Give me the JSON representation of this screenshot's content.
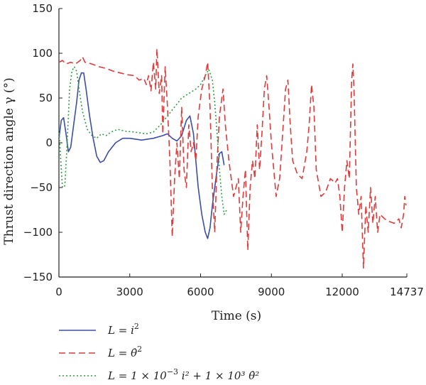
{
  "chart_data": {
    "type": "line",
    "xlabel": "Time (s)",
    "ylabel": "Thrust direction angle γ (°)",
    "xlim": [
      0,
      14737
    ],
    "ylim": [
      -150,
      150
    ],
    "x_ticks": [
      0,
      3000,
      6000,
      9000,
      12000,
      14737
    ],
    "x_tick_labels": [
      "0",
      "3000",
      "6000",
      "9000",
      "12000",
      "14737"
    ],
    "y_ticks": [
      150,
      100,
      50,
      0,
      -50,
      -100,
      -150
    ],
    "y_tick_labels": [
      "150",
      "100",
      "50",
      "0",
      "−50",
      "−100",
      "−150"
    ],
    "legend_position": "bottom-left, below plot",
    "grid": false,
    "series": [
      {
        "name": "L = i²",
        "legend_main": "L = i",
        "legend_sup": "2",
        "color": "#3b4ea8",
        "dash": "solid",
        "points": [
          [
            0,
            5
          ],
          [
            100,
            25
          ],
          [
            200,
            28
          ],
          [
            300,
            10
          ],
          [
            400,
            -10
          ],
          [
            500,
            -5
          ],
          [
            600,
            15
          ],
          [
            750,
            45
          ],
          [
            850,
            70
          ],
          [
            950,
            78
          ],
          [
            1050,
            78
          ],
          [
            1150,
            60
          ],
          [
            1300,
            30
          ],
          [
            1450,
            5
          ],
          [
            1600,
            -15
          ],
          [
            1750,
            -22
          ],
          [
            1900,
            -20
          ],
          [
            2100,
            -10
          ],
          [
            2400,
            0
          ],
          [
            2700,
            5
          ],
          [
            3000,
            5
          ],
          [
            3500,
            3
          ],
          [
            4000,
            5
          ],
          [
            4400,
            8
          ],
          [
            4600,
            10
          ],
          [
            4800,
            5
          ],
          [
            5000,
            2
          ],
          [
            5200,
            8
          ],
          [
            5400,
            25
          ],
          [
            5550,
            30
          ],
          [
            5700,
            10
          ],
          [
            5800,
            -20
          ],
          [
            5900,
            -50
          ],
          [
            6050,
            -80
          ],
          [
            6200,
            -100
          ],
          [
            6300,
            -107
          ],
          [
            6400,
            -95
          ],
          [
            6500,
            -70
          ],
          [
            6650,
            -40
          ],
          [
            6800,
            -12
          ],
          [
            6900,
            -10
          ],
          [
            7000,
            -25
          ]
        ]
      },
      {
        "name": "L = θ̇²",
        "legend_main": "L = θ̇",
        "legend_sup": "2",
        "color": "#e03a3a",
        "dash": "9,5",
        "points": [
          [
            0,
            90
          ],
          [
            150,
            92
          ],
          [
            300,
            88
          ],
          [
            500,
            90
          ],
          [
            700,
            88
          ],
          [
            900,
            92
          ],
          [
            1000,
            96
          ],
          [
            1100,
            90
          ],
          [
            1400,
            88
          ],
          [
            1700,
            85
          ],
          [
            2000,
            83
          ],
          [
            2300,
            80
          ],
          [
            2600,
            78
          ],
          [
            2900,
            76
          ],
          [
            3200,
            75
          ],
          [
            3400,
            70
          ],
          [
            3600,
            72
          ],
          [
            3700,
            65
          ],
          [
            3800,
            75
          ],
          [
            3900,
            58
          ],
          [
            4000,
            90
          ],
          [
            4100,
            60
          ],
          [
            4150,
            105
          ],
          [
            4250,
            55
          ],
          [
            4350,
            75
          ],
          [
            4400,
            10
          ],
          [
            4500,
            85
          ],
          [
            4600,
            40
          ],
          [
            4700,
            -20
          ],
          [
            4800,
            -105
          ],
          [
            4900,
            -40
          ],
          [
            5000,
            0
          ],
          [
            5100,
            -40
          ],
          [
            5200,
            40
          ],
          [
            5300,
            -30
          ],
          [
            5400,
            -50
          ],
          [
            5500,
            20
          ],
          [
            5600,
            -10
          ],
          [
            5700,
            0
          ],
          [
            5800,
            -20
          ],
          [
            5900,
            30
          ],
          [
            6050,
            60
          ],
          [
            6200,
            75
          ],
          [
            6300,
            90
          ],
          [
            6400,
            40
          ],
          [
            6500,
            -50
          ],
          [
            6600,
            -100
          ],
          [
            6700,
            -20
          ],
          [
            6800,
            30
          ],
          [
            6950,
            60
          ],
          [
            7050,
            20
          ],
          [
            7200,
            -20
          ],
          [
            7400,
            -60
          ],
          [
            7600,
            -40
          ],
          [
            7700,
            -100
          ],
          [
            7800,
            -60
          ],
          [
            7900,
            -30
          ],
          [
            8000,
            -120
          ],
          [
            8100,
            -50
          ],
          [
            8200,
            -20
          ],
          [
            8300,
            -40
          ],
          [
            8400,
            20
          ],
          [
            8500,
            -30
          ],
          [
            8600,
            10
          ],
          [
            8700,
            60
          ],
          [
            8800,
            75
          ],
          [
            8900,
            40
          ],
          [
            9000,
            0
          ],
          [
            9100,
            -30
          ],
          [
            9200,
            -60
          ],
          [
            9350,
            -40
          ],
          [
            9500,
            20
          ],
          [
            9600,
            60
          ],
          [
            9700,
            70
          ],
          [
            9800,
            20
          ],
          [
            9900,
            -20
          ],
          [
            10100,
            -35
          ],
          [
            10300,
            -40
          ],
          [
            10500,
            -10
          ],
          [
            10600,
            20
          ],
          [
            10700,
            65
          ],
          [
            10800,
            40
          ],
          [
            10900,
            -30
          ],
          [
            11100,
            -60
          ],
          [
            11300,
            -55
          ],
          [
            11500,
            -40
          ],
          [
            11700,
            -45
          ],
          [
            11800,
            -40
          ],
          [
            11900,
            -60
          ],
          [
            12000,
            -100
          ],
          [
            12100,
            -50
          ],
          [
            12200,
            -20
          ],
          [
            12300,
            -40
          ],
          [
            12400,
            70
          ],
          [
            12450,
            88
          ],
          [
            12500,
            60
          ],
          [
            12600,
            -50
          ],
          [
            12700,
            -80
          ],
          [
            12800,
            -60
          ],
          [
            12900,
            -140
          ],
          [
            13000,
            -70
          ],
          [
            13100,
            -100
          ],
          [
            13200,
            -50
          ],
          [
            13300,
            -90
          ],
          [
            13400,
            -60
          ],
          [
            13500,
            -100
          ],
          [
            13600,
            -80
          ],
          [
            13800,
            -85
          ],
          [
            14000,
            -88
          ],
          [
            14200,
            -90
          ],
          [
            14400,
            -85
          ],
          [
            14500,
            -95
          ],
          [
            14600,
            -80
          ],
          [
            14650,
            -60
          ],
          [
            14700,
            -70
          ]
        ]
      },
      {
        "name": "L = 1 × 10⁻³ i² + 1 × 10³ θ̇²",
        "legend_main": "L = 1 × 10",
        "legend_sup": "−3",
        "legend_rest": " i² + 1 × 10³ θ̇²",
        "color": "#2e9e3e",
        "dash": "2,3",
        "points": [
          [
            0,
            15
          ],
          [
            100,
            -30
          ],
          [
            150,
            -50
          ],
          [
            250,
            -48
          ],
          [
            350,
            0
          ],
          [
            450,
            60
          ],
          [
            550,
            80
          ],
          [
            650,
            85
          ],
          [
            750,
            80
          ],
          [
            850,
            60
          ],
          [
            1000,
            35
          ],
          [
            1200,
            15
          ],
          [
            1400,
            8
          ],
          [
            1600,
            5
          ],
          [
            1800,
            10
          ],
          [
            2000,
            8
          ],
          [
            2200,
            12
          ],
          [
            2500,
            15
          ],
          [
            2800,
            13
          ],
          [
            3200,
            12
          ],
          [
            3700,
            10
          ],
          [
            4000,
            12
          ],
          [
            4300,
            20
          ],
          [
            4600,
            30
          ],
          [
            4900,
            40
          ],
          [
            5200,
            50
          ],
          [
            5500,
            55
          ],
          [
            5800,
            60
          ],
          [
            6000,
            65
          ],
          [
            6200,
            75
          ],
          [
            6350,
            82
          ],
          [
            6500,
            70
          ],
          [
            6600,
            45
          ],
          [
            6700,
            10
          ],
          [
            6800,
            -30
          ],
          [
            6900,
            -60
          ],
          [
            7000,
            -80
          ],
          [
            7100,
            -75
          ]
        ]
      }
    ]
  }
}
